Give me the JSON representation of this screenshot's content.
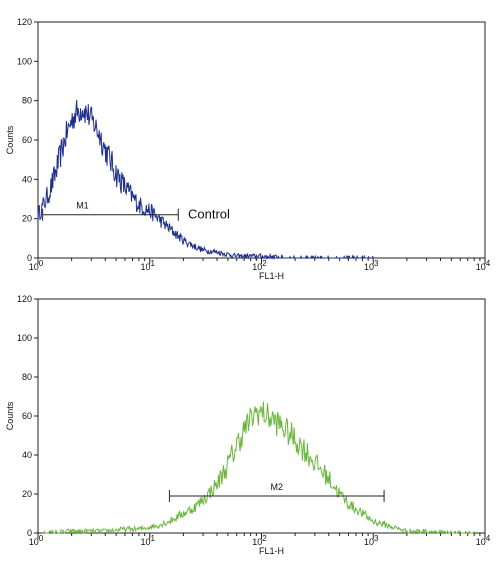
{
  "chart_data": [
    {
      "type": "line",
      "title": "",
      "xlabel": "FL1-H",
      "ylabel": "Counts",
      "x_scale": "log",
      "xlim": [
        1,
        10000
      ],
      "ylim": [
        0,
        120
      ],
      "x_ticks": [
        {
          "value": 1,
          "base": "10",
          "exp": "0"
        },
        {
          "value": 10,
          "base": "10",
          "exp": "1"
        },
        {
          "value": 100,
          "base": "10",
          "exp": "2"
        },
        {
          "value": 1000,
          "base": "10",
          "exp": "3"
        },
        {
          "value": 10000,
          "base": "10",
          "exp": "4"
        }
      ],
      "y_ticks": [
        "0",
        "20",
        "40",
        "60",
        "80",
        "100",
        "120"
      ],
      "grid": false,
      "color": "#1f2f8f",
      "series": [
        {
          "name": "Control",
          "x": [
            1.0,
            1.1,
            1.25,
            1.4,
            1.6,
            1.8,
            2.0,
            2.2,
            2.5,
            2.8,
            3.2,
            3.6,
            4.0,
            4.5,
            5.0,
            6.0,
            7.0,
            8.0,
            10,
            12,
            15,
            20,
            25,
            30,
            40,
            60,
            100,
            200,
            500,
            1000
          ],
          "y": [
            22,
            26,
            33,
            41,
            53,
            63,
            70,
            74,
            76,
            73,
            68,
            62,
            55,
            49,
            43,
            36,
            31,
            27,
            24,
            20,
            15,
            9,
            6,
            4,
            3,
            1,
            1,
            0,
            0,
            0
          ]
        }
      ],
      "marker": {
        "label": "M1",
        "x_start": 1.1,
        "x_end": 18,
        "y": 22
      },
      "annotation": {
        "text": "Control",
        "x": 22,
        "y": 22
      }
    },
    {
      "type": "line",
      "title": "",
      "xlabel": "FL1-H",
      "ylabel": "Counts",
      "x_scale": "log",
      "xlim": [
        1,
        10000
      ],
      "ylim": [
        0,
        120
      ],
      "x_ticks": [
        {
          "value": 1,
          "base": "10",
          "exp": "0"
        },
        {
          "value": 10,
          "base": "10",
          "exp": "1"
        },
        {
          "value": 100,
          "base": "10",
          "exp": "2"
        },
        {
          "value": 1000,
          "base": "10",
          "exp": "3"
        },
        {
          "value": 10000,
          "base": "10",
          "exp": "4"
        }
      ],
      "y_ticks": [
        "0",
        "20",
        "40",
        "60",
        "80",
        "100",
        "120"
      ],
      "grid": false,
      "color": "#6ab63c",
      "series": [
        {
          "name": "",
          "x": [
            1.1,
            2,
            4,
            6,
            8,
            10,
            12,
            15,
            20,
            25,
            30,
            40,
            50,
            60,
            70,
            80,
            90,
            100,
            120,
            150,
            200,
            250,
            300,
            400,
            500,
            600,
            800,
            1000,
            1500,
            2000,
            3000,
            5000,
            8000
          ],
          "y": [
            0,
            1,
            1,
            2,
            2,
            3,
            4,
            6,
            10,
            13,
            17,
            25,
            35,
            45,
            53,
            58,
            62,
            62,
            59,
            55,
            48,
            42,
            36,
            28,
            20,
            15,
            10,
            6,
            3,
            1,
            1,
            0,
            0
          ]
        }
      ],
      "marker": {
        "label": "M2",
        "x_start": 15,
        "x_end": 1250,
        "y": 19
      }
    }
  ]
}
